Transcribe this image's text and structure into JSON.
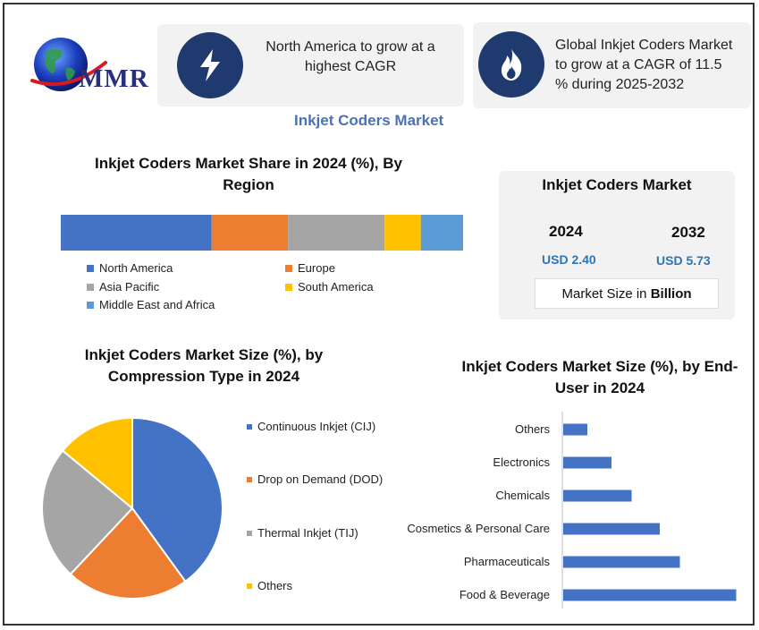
{
  "brand": {
    "logo_text": "MMR"
  },
  "header": {
    "card_left": {
      "icon": "lightning-icon",
      "text": "North America to grow at a highest CAGR"
    },
    "card_right": {
      "icon": "flame-icon",
      "text": "Global Inkjet Coders Market to grow at a CAGR of 11.5 % during 2025-2032"
    },
    "main_title": "Inkjet Coders Market"
  },
  "market_card": {
    "title": "Inkjet Coders Market",
    "year_1": "2024",
    "value_1": "USD 2.40",
    "year_2": "2032",
    "value_2": "USD 5.73",
    "size_label": "Market Size in ",
    "size_unit": "Billion"
  },
  "colors": {
    "blue": "#4472c4",
    "orange": "#ed7d31",
    "gray": "#a5a5a5",
    "yellow": "#ffc000",
    "light_blue": "#5b9bd5",
    "dark_navy": "#1f3a6e"
  },
  "chart_data": [
    {
      "type": "bar",
      "orientation": "horizontal-stacked",
      "title": "Inkjet Coders Market Share in 2024 (%), By Region",
      "series": [
        {
          "name": "North America",
          "value": 37.5,
          "color": "#4472c4"
        },
        {
          "name": "Europe",
          "value": 19,
          "color": "#ed7d31"
        },
        {
          "name": "Asia Pacific",
          "value": 24,
          "color": "#a5a5a5"
        },
        {
          "name": "South America",
          "value": 9,
          "color": "#ffc000"
        },
        {
          "name": "Middle East and Africa",
          "value": 10.5,
          "color": "#5b9bd5"
        }
      ],
      "legend": "bottom"
    },
    {
      "type": "pie",
      "title": "Inkjet Coders Market Size (%), by Compression Type in 2024",
      "slices": [
        {
          "name": "Continuous Inkjet (CIJ)",
          "value": 40,
          "color": "#4472c4"
        },
        {
          "name": "Drop on Demand (DOD)",
          "value": 22,
          "color": "#ed7d31"
        },
        {
          "name": "Thermal Inkjet (TIJ)",
          "value": 24,
          "color": "#a5a5a5"
        },
        {
          "name": "Others",
          "value": 14,
          "color": "#ffc000"
        }
      ],
      "legend": "right"
    },
    {
      "type": "bar",
      "orientation": "horizontal",
      "title": "Inkjet Coders Market Size (%), by End-User in 2024",
      "categories": [
        "Others",
        "Electronics",
        "Chemicals",
        "Cosmetics & Personal Care",
        "Pharmaceuticals",
        "Food & Beverage"
      ],
      "values": [
        3,
        6,
        8.5,
        12,
        14.5,
        21.5
      ],
      "color": "#4472c4",
      "xlim": [
        0,
        22
      ]
    }
  ]
}
